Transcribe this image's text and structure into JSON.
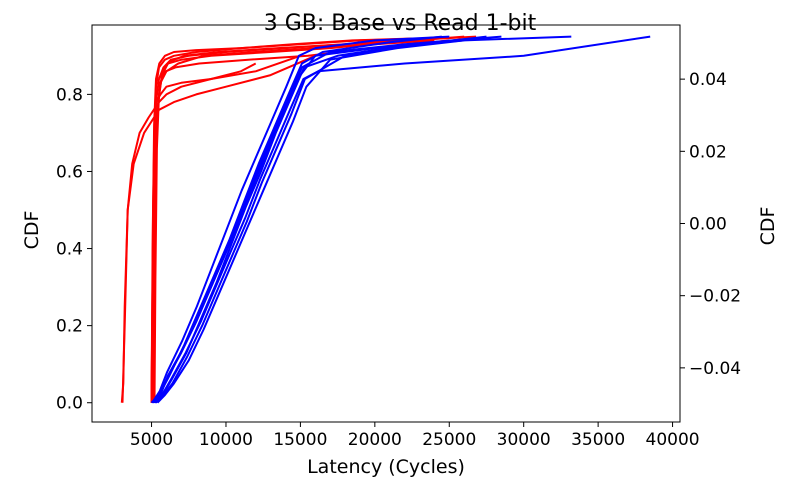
{
  "chart_data": {
    "type": "line",
    "title": "3 GB: Base vs Read 1-bit",
    "xlabel": "Latency (Cycles)",
    "ylabel": "CDF",
    "ylabel_right": "CDF",
    "xlim": [
      1000,
      40500
    ],
    "ylim": [
      -0.05,
      0.98
    ],
    "ylim_right": [
      -0.055,
      0.055
    ],
    "xticks": [
      5000,
      10000,
      15000,
      20000,
      25000,
      30000,
      35000,
      40000
    ],
    "xtick_labels": [
      "5000",
      "10000",
      "15000",
      "20000",
      "25000",
      "30000",
      "35000",
      "40000"
    ],
    "yticks": [
      0.0,
      0.2,
      0.4,
      0.6,
      0.8
    ],
    "ytick_labels": [
      "0.0",
      "0.2",
      "0.4",
      "0.6",
      "0.8"
    ],
    "yticks_right": [
      -0.04,
      -0.02,
      0.0,
      0.02,
      0.04
    ],
    "ytick_labels_right": [
      "−0.04",
      "−0.02",
      "0.00",
      "0.02",
      "0.04"
    ],
    "grid": false,
    "legend": "none",
    "series": [
      {
        "color": "#ff0000",
        "x": [
          3000,
          3100,
          3200,
          3400,
          3700,
          4200,
          4800,
          5500,
          6000,
          7000,
          9000,
          11000,
          12000
        ],
        "y": [
          0,
          0.05,
          0.25,
          0.5,
          0.62,
          0.7,
          0.74,
          0.78,
          0.8,
          0.82,
          0.84,
          0.86,
          0.88
        ]
      },
      {
        "color": "#ff0000",
        "x": [
          3050,
          3200,
          3400,
          3800,
          4500,
          5500,
          6500,
          8000,
          10000,
          13000,
          16000
        ],
        "y": [
          0,
          0.2,
          0.5,
          0.62,
          0.7,
          0.76,
          0.78,
          0.8,
          0.82,
          0.85,
          0.9
        ]
      },
      {
        "color": "#ff0000",
        "x": [
          5000,
          5050,
          5100,
          5200,
          5300,
          5600,
          6000,
          7000,
          9000,
          12000,
          15000
        ],
        "y": [
          0,
          0.2,
          0.5,
          0.7,
          0.78,
          0.8,
          0.82,
          0.83,
          0.84,
          0.86,
          0.9
        ]
      },
      {
        "color": "#ff0000",
        "x": [
          5050,
          5100,
          5200,
          5300,
          5500,
          5800,
          6300,
          7500,
          10000,
          14000,
          18000,
          21000
        ],
        "y": [
          0,
          0.3,
          0.65,
          0.78,
          0.84,
          0.87,
          0.89,
          0.9,
          0.91,
          0.92,
          0.93,
          0.94
        ]
      },
      {
        "color": "#ff0000",
        "x": [
          5100,
          5150,
          5250,
          5400,
          5600,
          6000,
          6800,
          8500,
          12000,
          16000,
          20000,
          24000
        ],
        "y": [
          0,
          0.25,
          0.6,
          0.76,
          0.83,
          0.86,
          0.88,
          0.9,
          0.91,
          0.92,
          0.93,
          0.94
        ]
      },
      {
        "color": "#ff0000",
        "x": [
          5000,
          5080,
          5180,
          5300,
          5500,
          5900,
          6500,
          8000,
          11000,
          15000,
          19000,
          23000
        ],
        "y": [
          0,
          0.35,
          0.7,
          0.82,
          0.87,
          0.89,
          0.9,
          0.91,
          0.92,
          0.93,
          0.94,
          0.945
        ]
      },
      {
        "color": "#ff0000",
        "x": [
          5150,
          5200,
          5300,
          5450,
          5700,
          6100,
          7000,
          9000,
          13000,
          17000,
          21000,
          26000
        ],
        "y": [
          0,
          0.3,
          0.62,
          0.78,
          0.85,
          0.88,
          0.89,
          0.9,
          0.91,
          0.92,
          0.935,
          0.95
        ]
      },
      {
        "color": "#ff0000",
        "x": [
          5100,
          5160,
          5260,
          5380,
          5580,
          5950,
          6600,
          8200,
          11500,
          15500,
          20000,
          25000
        ],
        "y": [
          0,
          0.28,
          0.58,
          0.75,
          0.83,
          0.86,
          0.87,
          0.88,
          0.89,
          0.9,
          0.92,
          0.94
        ]
      },
      {
        "color": "#ff0000",
        "x": [
          5200,
          5260,
          5360,
          5500,
          5750,
          6200,
          7200,
          9500,
          13500,
          18000,
          22000,
          26800
        ],
        "y": [
          0,
          0.32,
          0.66,
          0.8,
          0.86,
          0.885,
          0.9,
          0.91,
          0.92,
          0.93,
          0.94,
          0.95
        ]
      },
      {
        "color": "#ff0000",
        "x": [
          5000,
          5070,
          5170,
          5300,
          5520,
          5900,
          6500,
          8000,
          11000,
          14500,
          18500,
          22500
        ],
        "y": [
          0,
          0.4,
          0.72,
          0.84,
          0.88,
          0.9,
          0.91,
          0.915,
          0.92,
          0.93,
          0.94,
          0.945
        ]
      },
      {
        "color": "#0000ff",
        "x": [
          5000,
          5500,
          6000,
          7000,
          8000,
          9000,
          10000,
          11000,
          12000,
          13000,
          14000,
          15000,
          16000,
          20000,
          26000,
          33200
        ],
        "y": [
          0,
          0.02,
          0.06,
          0.13,
          0.21,
          0.3,
          0.39,
          0.48,
          0.58,
          0.67,
          0.76,
          0.85,
          0.9,
          0.92,
          0.94,
          0.95
        ]
      },
      {
        "color": "#0000ff",
        "x": [
          5200,
          5700,
          6300,
          7300,
          8300,
          9300,
          10300,
          11300,
          12300,
          13300,
          14300,
          15200,
          16200,
          22000,
          30000,
          38500
        ],
        "y": [
          0,
          0.02,
          0.06,
          0.13,
          0.21,
          0.3,
          0.39,
          0.48,
          0.58,
          0.67,
          0.76,
          0.84,
          0.86,
          0.88,
          0.9,
          0.95
        ]
      },
      {
        "color": "#0000ff",
        "x": [
          5100,
          5600,
          6100,
          7100,
          8100,
          9100,
          10100,
          11100,
          12100,
          13100,
          14100,
          15100,
          17000,
          22000,
          28500
        ],
        "y": [
          0,
          0.02,
          0.07,
          0.14,
          0.22,
          0.31,
          0.4,
          0.5,
          0.6,
          0.69,
          0.78,
          0.87,
          0.91,
          0.93,
          0.95
        ]
      },
      {
        "color": "#0000ff",
        "x": [
          5300,
          5800,
          6400,
          7400,
          8400,
          9400,
          10400,
          11400,
          12400,
          13400,
          14400,
          15300,
          18000,
          23000,
          27500
        ],
        "y": [
          0,
          0.02,
          0.05,
          0.12,
          0.2,
          0.29,
          0.38,
          0.47,
          0.57,
          0.66,
          0.75,
          0.84,
          0.9,
          0.93,
          0.95
        ]
      },
      {
        "color": "#0000ff",
        "x": [
          5050,
          5550,
          6050,
          7050,
          8050,
          9050,
          10050,
          11050,
          12050,
          13050,
          14050,
          14900,
          16000,
          20000,
          25000
        ],
        "y": [
          0,
          0.03,
          0.08,
          0.16,
          0.25,
          0.35,
          0.45,
          0.55,
          0.64,
          0.73,
          0.82,
          0.9,
          0.92,
          0.94,
          0.95
        ]
      },
      {
        "color": "#0000ff",
        "x": [
          5400,
          5900,
          6500,
          7500,
          8500,
          9500,
          10500,
          11500,
          12500,
          13500,
          14500,
          15400,
          17000,
          21500,
          26000
        ],
        "y": [
          0,
          0.02,
          0.05,
          0.11,
          0.19,
          0.28,
          0.37,
          0.46,
          0.55,
          0.64,
          0.73,
          0.82,
          0.89,
          0.92,
          0.94
        ]
      },
      {
        "color": "#0000ff",
        "x": [
          5150,
          5650,
          6200,
          7200,
          8200,
          9200,
          10200,
          11200,
          12200,
          13200,
          14200,
          15100,
          16500,
          21000,
          24500
        ],
        "y": [
          0,
          0.03,
          0.07,
          0.15,
          0.24,
          0.33,
          0.42,
          0.52,
          0.62,
          0.71,
          0.8,
          0.88,
          0.91,
          0.935,
          0.95
        ]
      },
      {
        "color": "#0000ff",
        "x": [
          5250,
          5750,
          6350,
          7350,
          8350,
          9350,
          10350,
          11350,
          12350,
          13350,
          14350,
          15250,
          17500,
          22500,
          26500
        ],
        "y": [
          0,
          0.02,
          0.06,
          0.13,
          0.22,
          0.31,
          0.41,
          0.51,
          0.6,
          0.7,
          0.79,
          0.87,
          0.9,
          0.93,
          0.945
        ]
      }
    ]
  }
}
